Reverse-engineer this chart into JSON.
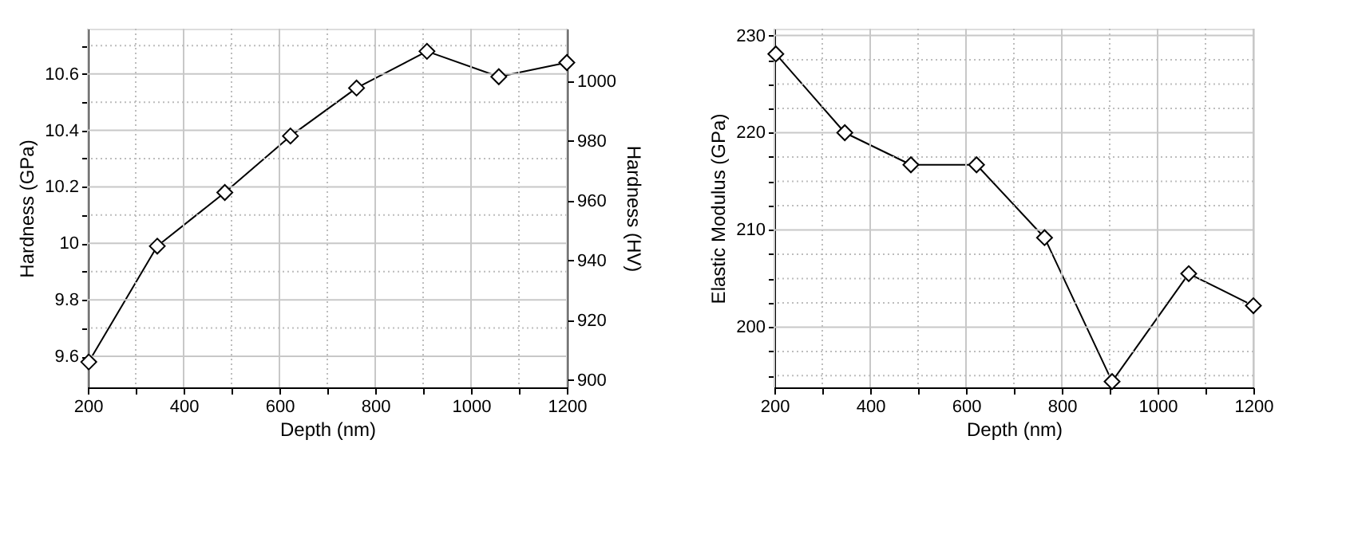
{
  "chart_data": [
    {
      "type": "line",
      "xlabel": "Depth (nm)",
      "ylabel": "Hardness (GPa)",
      "y2label": "Hardness (HV)",
      "marker": "diamond",
      "line_style": "solid",
      "grid": true,
      "x": [
        202,
        345,
        486,
        623,
        761,
        908,
        1058,
        1200
      ],
      "series": [
        {
          "color": "#000000",
          "values": [
            9.58,
            9.99,
            10.18,
            10.38,
            10.55,
            10.68,
            10.59,
            10.64
          ]
        }
      ],
      "xlim": [
        200,
        1200
      ],
      "xticks": [
        200,
        {
          "value": 300,
          "label": null
        },
        400,
        {
          "value": 500,
          "label": null
        },
        600,
        {
          "value": 700,
          "label": null
        },
        800,
        {
          "value": 900,
          "label": null
        },
        1000,
        {
          "value": 1100,
          "label": null
        },
        1200
      ],
      "ylim": [
        9.49,
        10.76
      ],
      "yticks": [
        9.6,
        {
          "value": 9.7,
          "label": null
        },
        9.8,
        {
          "value": 9.9,
          "label": null
        },
        10,
        {
          "value": 10.1,
          "label": null
        },
        10.2,
        {
          "value": 10.3,
          "label": null
        },
        10.4,
        {
          "value": 10.5,
          "label": null
        },
        10.6,
        {
          "value": 10.7,
          "label": null
        }
      ],
      "y2lim": [
        897.5,
        1017.5
      ],
      "y2ticks": [
        900,
        920,
        940,
        960,
        980,
        1000
      ]
    },
    {
      "type": "line",
      "xlabel": "Depth (nm)",
      "ylabel": "Elastic Modulus (GPa)",
      "marker": "diamond",
      "line_style": "solid",
      "grid": true,
      "x": [
        203,
        347,
        485,
        622,
        764,
        905,
        1065,
        1200
      ],
      "series": [
        {
          "color": "#000000",
          "values": [
            228.1,
            220.0,
            216.7,
            216.7,
            209.2,
            194.4,
            205.5,
            202.2
          ]
        }
      ],
      "xlim": [
        200,
        1200
      ],
      "xticks": [
        200,
        {
          "value": 300,
          "label": null
        },
        400,
        {
          "value": 500,
          "label": null
        },
        600,
        {
          "value": 700,
          "label": null
        },
        800,
        {
          "value": 900,
          "label": null
        },
        1000,
        {
          "value": 1100,
          "label": null
        },
        1200
      ],
      "ylim": [
        193.8,
        230.7
      ],
      "yticks": [
        {
          "value": 195,
          "label": null
        },
        {
          "value": 197.5,
          "label": null
        },
        200,
        {
          "value": 202.5,
          "label": null
        },
        {
          "value": 205,
          "label": null
        },
        {
          "value": 207.5,
          "label": null
        },
        210,
        {
          "value": 212.5,
          "label": null
        },
        {
          "value": 215,
          "label": null
        },
        {
          "value": 217.5,
          "label": null
        },
        220,
        {
          "value": 222.5,
          "label": null
        },
        {
          "value": 225,
          "label": null
        },
        {
          "value": 227.5,
          "label": null
        },
        230
      ]
    }
  ]
}
